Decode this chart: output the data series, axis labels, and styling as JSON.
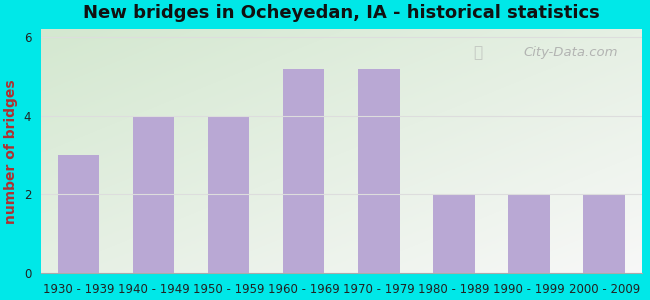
{
  "categories": [
    "1930 - 1939",
    "1940 - 1949",
    "1950 - 1959",
    "1960 - 1969",
    "1970 - 1979",
    "1980 - 1989",
    "1990 - 1999",
    "2000 - 2009"
  ],
  "values": [
    3,
    4,
    4,
    5.2,
    5.2,
    2,
    2,
    2
  ],
  "bar_color": "#b9a8d4",
  "title": "New bridges in Ocheyedan, IA - historical statistics",
  "ylabel": "number of bridges",
  "ylim": [
    0,
    6.2
  ],
  "yticks": [
    0,
    2,
    4,
    6
  ],
  "background_outer": "#00e8e8",
  "background_grad_top_left": "#d4e8d0",
  "background_grad_bottom_right": "#f8f8f8",
  "title_fontsize": 13,
  "ylabel_fontsize": 10,
  "tick_fontsize": 8.5,
  "watermark_text": "City-Data.com",
  "grid_color": "#dddddd",
  "ylabel_color": "#b03030",
  "title_color": "#111111"
}
